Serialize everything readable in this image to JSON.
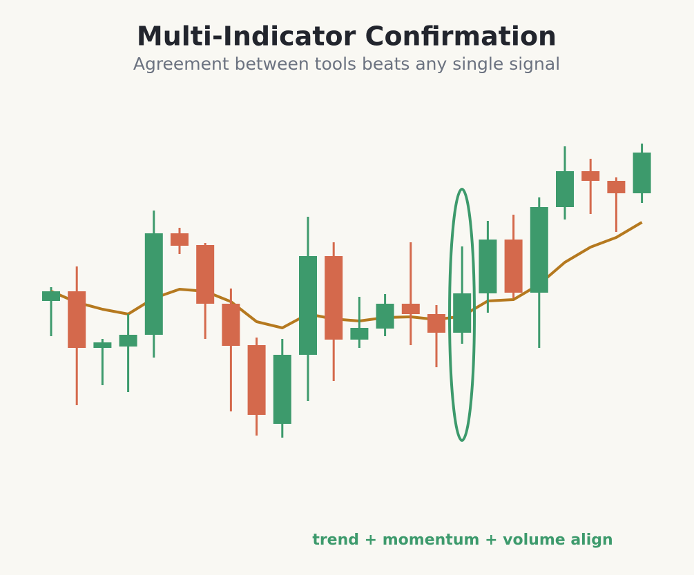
{
  "chart_data": {
    "type": "candlestick",
    "title": "Multi-Indicator Confirmation",
    "subtitle": "Agreement between tools beats any single signal",
    "annotation": "trend + momentum + volume align",
    "open": [
      52.8,
      55.6,
      39.2,
      39.6,
      43,
      72.4,
      69,
      52,
      40,
      17.2,
      37.2,
      65.8,
      41.6,
      44.8,
      52,
      49,
      43.6,
      55,
      70.6,
      55.2,
      80,
      90.4,
      87.6,
      84
    ],
    "high": [
      56.8,
      62.8,
      41.8,
      49,
      79,
      74,
      69.6,
      56.4,
      42.2,
      41.8,
      77.2,
      69.8,
      54,
      54.8,
      69.8,
      51.6,
      68.6,
      76,
      77.8,
      82.8,
      97.6,
      94,
      88.6,
      98.4
    ],
    "low": [
      42.6,
      22.6,
      28.4,
      26.4,
      36.4,
      66.4,
      41.8,
      20.8,
      13.8,
      13.2,
      23.8,
      29.6,
      39.2,
      42.6,
      40,
      33.6,
      40.4,
      49.4,
      53.6,
      39.2,
      76.4,
      78,
      72.8,
      81.2
    ],
    "close": [
      55.6,
      39.2,
      40.8,
      43,
      72.4,
      68.8,
      52,
      39.8,
      19.8,
      37.2,
      65.8,
      41.6,
      45,
      52,
      49,
      43.6,
      55,
      70.6,
      55.2,
      80,
      90.4,
      87.6,
      84,
      95.8
    ],
    "ma": {
      "color": "#b5791f",
      "values": [
        55.6,
        52.4,
        50.4,
        49,
        53.6,
        56.2,
        55.6,
        52.6,
        46.8,
        45,
        49,
        47.6,
        47,
        48,
        48.2,
        47.4,
        48.4,
        52.8,
        53.2,
        57.6,
        64,
        68.4,
        71.2,
        75.6
      ]
    },
    "up_color": "#3d9a6c",
    "down_color": "#d4694c",
    "ylim": [
      0,
      110
    ]
  }
}
